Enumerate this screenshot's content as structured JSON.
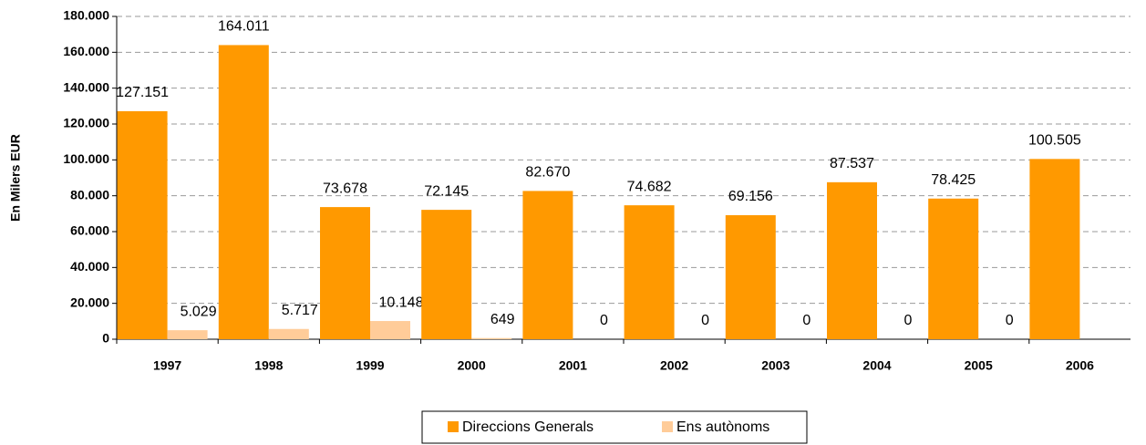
{
  "chart_data": {
    "type": "bar",
    "y_label": "En Milers EUR",
    "categories": [
      "1997",
      "1998",
      "1999",
      "2000",
      "2001",
      "2002",
      "2003",
      "2004",
      "2005",
      "2006"
    ],
    "series": [
      {
        "name": "Direccions Generals",
        "color": "#ff9900",
        "values": [
          127151,
          164011,
          73678,
          72145,
          82670,
          74682,
          69156,
          87537,
          78425,
          100505
        ],
        "value_labels": [
          "127.151",
          "164.011",
          "73.678",
          "72.145",
          "82.670",
          "74.682",
          "69.156",
          "87.537",
          "78.425",
          "100.505"
        ]
      },
      {
        "name": "Ens autònoms",
        "color": "#ffcc99",
        "values": [
          5029,
          5717,
          10148,
          649,
          0,
          0,
          0,
          0,
          0,
          null
        ],
        "value_labels": [
          "5.029",
          "5.717",
          "10.148",
          649,
          0,
          0,
          0,
          0,
          0,
          null
        ]
      }
    ],
    "ylim": [
      0,
      180000
    ],
    "yticks": [
      0,
      {
        "value": 20000,
        "label": "20.000"
      },
      {
        "value": 40000,
        "label": "40.000"
      },
      {
        "value": 60000,
        "label": "60.000"
      },
      {
        "value": 80000,
        "label": "80.000"
      },
      {
        "value": 100000,
        "label": "100.000"
      },
      {
        "value": 120000,
        "label": "120.000"
      },
      {
        "value": 140000,
        "label": "140.000"
      },
      {
        "value": 160000,
        "label": "160.000"
      },
      {
        "value": 180000,
        "label": "180.000"
      }
    ],
    "grid": true,
    "legend": "bottom"
  }
}
